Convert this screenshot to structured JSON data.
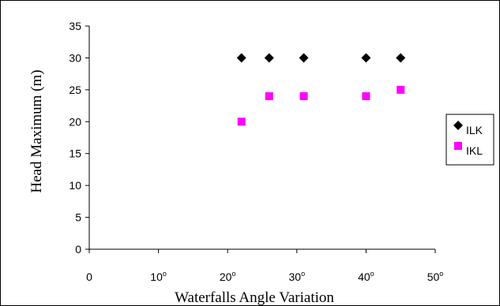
{
  "chart_data": {
    "type": "scatter",
    "title": "",
    "xlabel": "Waterfalls Angle Variation",
    "ylabel": "Head Maximum (m)",
    "xlim": [
      0,
      50
    ],
    "ylim": [
      0,
      35
    ],
    "x_ticks": [
      {
        "value": 0,
        "label": "0"
      },
      {
        "value": 10,
        "label": "10",
        "sup": "o"
      },
      {
        "value": 20,
        "label": "20",
        "sup": "o"
      },
      {
        "value": 30,
        "label": "30",
        "sup": "o"
      },
      {
        "value": 40,
        "label": "40",
        "sup": "o"
      },
      {
        "value": 50,
        "label": "50",
        "sup": "o"
      }
    ],
    "y_ticks": [
      0,
      5,
      10,
      15,
      20,
      25,
      30,
      35
    ],
    "grid": false,
    "legend_position": "right",
    "series": [
      {
        "name": "ILK",
        "marker": "diamond",
        "color": "#000000",
        "points": [
          {
            "x": 22,
            "y": 30
          },
          {
            "x": 26,
            "y": 30
          },
          {
            "x": 31,
            "y": 30
          },
          {
            "x": 40,
            "y": 30
          },
          {
            "x": 45,
            "y": 30
          }
        ]
      },
      {
        "name": "IKL",
        "marker": "square",
        "color": "#ff00ff",
        "points": [
          {
            "x": 22,
            "y": 20
          },
          {
            "x": 26,
            "y": 24
          },
          {
            "x": 31,
            "y": 24
          },
          {
            "x": 40,
            "y": 24
          },
          {
            "x": 45,
            "y": 25
          }
        ]
      }
    ]
  }
}
